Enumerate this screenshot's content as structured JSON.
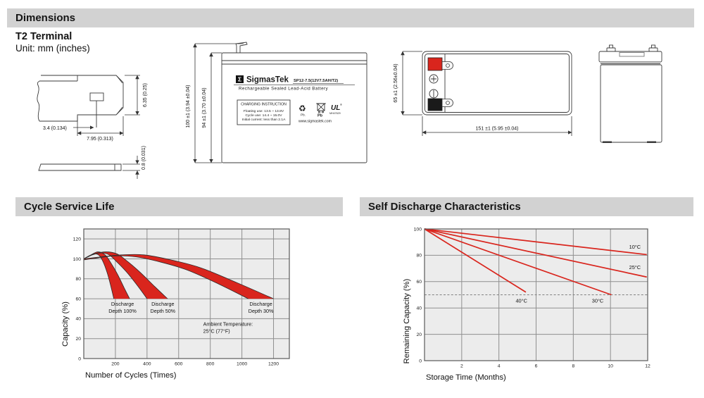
{
  "sections": {
    "dimensions": "Dimensions",
    "cycle_service_life": "Cycle Service Life",
    "self_discharge": "Self Discharge Characteristics"
  },
  "colors": {
    "accent_red": "#d9251d",
    "section_header_bg": "#d2d2d2",
    "chart_bg": "#ececec",
    "grid_line": "#8f8f8f",
    "terminal_negative": "#1a1a1a"
  },
  "terminal": {
    "heading": "T2 Terminal",
    "unit": "Unit: mm (inches)",
    "dims": {
      "hole_offset": "3.4 (0.134)",
      "tab_width": "7.95 (0.313)",
      "tab_height": "6.35 (0.25)",
      "thickness": "0.8 (0.031)"
    }
  },
  "front_view": {
    "dim_total_height": "100 ±1 (3.94 ±0.04)",
    "dim_case_height": "94 ±1 (3.70 ±0.04)",
    "label": {
      "brand_sigma": "Σ",
      "brand": "SigmasTek",
      "model": "SP12-7.5(12V7.5AH/T2)",
      "subtitle": "Rechargeable Sealed Lead-Acid Battery",
      "charging_title": "CHARGING INSTRUCTION",
      "charging_lines": [
        "Floating use: 13.5 ~ 13.8V",
        "Cycle use: 14.4 ~ 15.0V",
        "Initial current: less than 2.1A"
      ],
      "recycle_icon_glyph": "♻",
      "recycle_pb": "Pb.",
      "bin_pb": "Pb",
      "ul_mark": "UL",
      "ul_reg": "®",
      "ul_code": "MH47629",
      "website": "www.sigmastek.com"
    }
  },
  "top_view": {
    "dim_height": "65 ±1 (2.56±0.04)",
    "dim_width": "151 ±1 (5.95 ±0.04)"
  },
  "chart_data": [
    {
      "id": "cycle",
      "type": "area",
      "title": "Cycle Service Life",
      "xlabel": "Number of Cycles (Times)",
      "ylabel": "Capacity (%)",
      "xlim": [
        0,
        1300
      ],
      "ylim": [
        0,
        130
      ],
      "xticks": [
        200,
        400,
        600,
        800,
        1000,
        1200
      ],
      "yticks": [
        0,
        20,
        40,
        60,
        80,
        100,
        120
      ],
      "grid": true,
      "bg": "#ececec",
      "band_color": "#d9251d",
      "edge_color": "#2b2b2b",
      "bands": [
        {
          "name": "Discharge Depth 100%",
          "lower": [
            [
              0,
              100
            ],
            [
              35,
              103
            ],
            [
              70,
              105
            ],
            [
              100,
              103
            ],
            [
              125,
              96
            ],
            [
              150,
              85
            ],
            [
              172,
              72
            ],
            [
              190,
              60
            ]
          ],
          "upper": [
            [
              0,
              100
            ],
            [
              45,
              104
            ],
            [
              90,
              107
            ],
            [
              135,
              104
            ],
            [
              175,
              95
            ],
            [
              215,
              84
            ],
            [
              255,
              71
            ],
            [
              290,
              60
            ]
          ]
        },
        {
          "name": "Discharge Depth 50%",
          "lower": [
            [
              0,
              100
            ],
            [
              55,
              104
            ],
            [
              110,
              106
            ],
            [
              160,
              104
            ],
            [
              215,
              96
            ],
            [
              275,
              86
            ],
            [
              340,
              73
            ],
            [
              400,
              60
            ]
          ],
          "upper": [
            [
              0,
              100
            ],
            [
              70,
              105
            ],
            [
              140,
              107
            ],
            [
              210,
              105
            ],
            [
              280,
              97
            ],
            [
              360,
              86
            ],
            [
              450,
              72
            ],
            [
              530,
              60
            ]
          ]
        },
        {
          "name": "Discharge Depth 30%",
          "lower": [
            [
              0,
              99
            ],
            [
              90,
              101
            ],
            [
              200,
              103
            ],
            [
              330,
              102
            ],
            [
              480,
              97
            ],
            [
              650,
              89
            ],
            [
              850,
              75
            ],
            [
              1040,
              60
            ]
          ],
          "upper": [
            [
              0,
              100
            ],
            [
              110,
              102
            ],
            [
              240,
              104
            ],
            [
              380,
              104
            ],
            [
              550,
              99
            ],
            [
              740,
              91
            ],
            [
              970,
              76
            ],
            [
              1200,
              60
            ]
          ]
        }
      ],
      "annotations": [
        {
          "x": 245,
          "y": 53,
          "align": "center",
          "lines": [
            "Discharge",
            "Depth 100%"
          ]
        },
        {
          "x": 500,
          "y": 53,
          "align": "center",
          "lines": [
            "Discharge",
            "Depth 50%"
          ]
        },
        {
          "x": 1120,
          "y": 53,
          "align": "center",
          "lines": [
            "Discharge",
            "Depth 30%"
          ]
        },
        {
          "x": 755,
          "y": 33,
          "align": "left",
          "lines": [
            "Ambient Temperature:",
            "25°C (77°F)"
          ]
        }
      ]
    },
    {
      "id": "self_discharge",
      "type": "line",
      "title": "Self Discharge Characteristics",
      "xlabel": "Storage Time (Months)",
      "ylabel": "Remaining Capacity (%)",
      "xlim": [
        0,
        12
      ],
      "ylim": [
        0,
        100
      ],
      "xticks": [
        2,
        4,
        6,
        8,
        10,
        12
      ],
      "yticks": [
        0,
        20,
        40,
        60,
        80,
        100
      ],
      "grid": true,
      "bg": "#ececec",
      "line_color": "#d9251d",
      "dashed_line_y": 50,
      "series": [
        {
          "name": "10°C",
          "points": [
            [
              0,
              100
            ],
            [
              11.95,
              80.5
            ]
          ],
          "label_x": 11.0,
          "label_y": 85
        },
        {
          "name": "25°C",
          "points": [
            [
              0,
              100
            ],
            [
              11.95,
              63.5
            ]
          ],
          "label_x": 11.0,
          "label_y": 69.5
        },
        {
          "name": "30°C",
          "points": [
            [
              0,
              100
            ],
            [
              10.05,
              50
            ]
          ],
          "label_x": 9.0,
          "label_y": 44
        },
        {
          "name": "40°C",
          "points": [
            [
              0,
              100
            ],
            [
              5.45,
              52
            ]
          ],
          "label_x": 4.9,
          "label_y": 44
        }
      ]
    }
  ]
}
